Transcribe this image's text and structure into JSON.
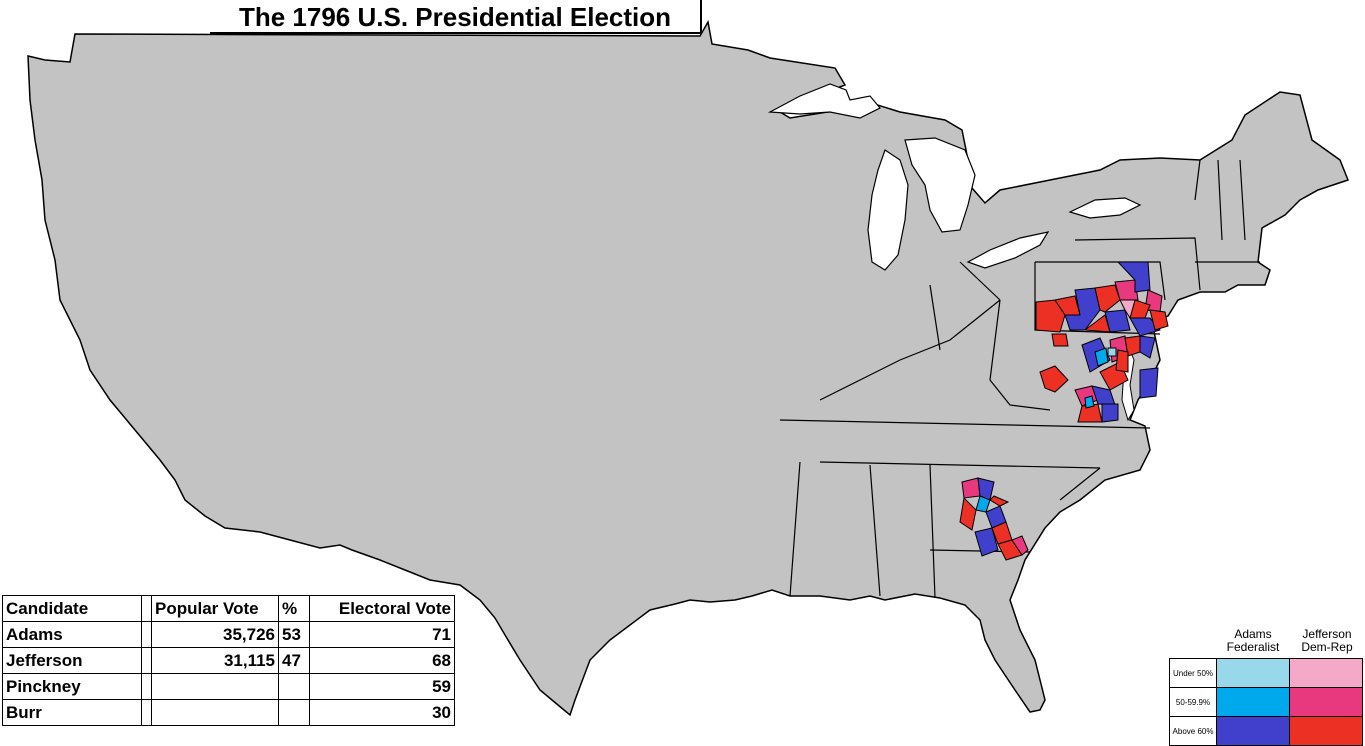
{
  "title": "The 1796 U.S. Presidential Election",
  "table": {
    "headers": {
      "candidate": "Candidate",
      "popular_vote": "Popular Vote",
      "percent": "%",
      "electoral_vote": "Electoral Vote"
    },
    "rows": [
      {
        "candidate": "Adams",
        "popular_vote": "35,726",
        "percent": "53",
        "electoral_vote": "71"
      },
      {
        "candidate": "Jefferson",
        "popular_vote": "31,115",
        "percent": "47",
        "electoral_vote": "68"
      },
      {
        "candidate": "Pinckney",
        "popular_vote": "",
        "percent": "",
        "electoral_vote": "59"
      },
      {
        "candidate": "Burr",
        "popular_vote": "",
        "percent": "",
        "electoral_vote": "30"
      }
    ]
  },
  "legend": {
    "adams_line1": "Adams",
    "adams_line2": "Federalist",
    "jefferson_line1": "Jefferson",
    "jefferson_line2": "Dem-Rep",
    "rows": [
      {
        "label": "Under 50%",
        "adams_color": "#99d8ea",
        "jefferson_color": "#f5a9c8"
      },
      {
        "label": "50-59.9%",
        "adams_color": "#00a8ec",
        "jefferson_color": "#e8397f"
      },
      {
        "label": "Above 60%",
        "adams_color": "#4040cc",
        "jefferson_color": "#ec3124"
      }
    ]
  },
  "colors": {
    "land": "#c3c3c3",
    "border": "#000000",
    "water": "#ffffff"
  }
}
